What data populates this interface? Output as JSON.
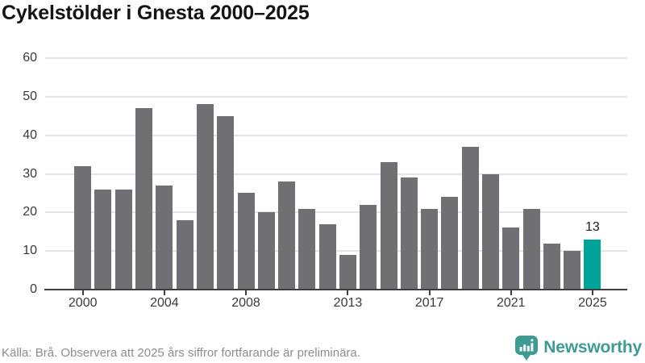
{
  "chart": {
    "title": "Cykelstölder i Gnesta 2000–2025"
  },
  "chart_data": {
    "type": "bar",
    "title": "Cykelstölder i Gnesta 2000–2025",
    "categories": [
      2000,
      2001,
      2002,
      2003,
      2004,
      2005,
      2006,
      2007,
      2008,
      2009,
      2010,
      2011,
      2012,
      2013,
      2014,
      2015,
      2016,
      2017,
      2018,
      2019,
      2020,
      2021,
      2022,
      2023,
      2024,
      2025
    ],
    "values": [
      32,
      26,
      26,
      47,
      27,
      18,
      48,
      45,
      25,
      20,
      28,
      21,
      17,
      9,
      22,
      33,
      29,
      21,
      24,
      37,
      30,
      16,
      21,
      12,
      10,
      13
    ],
    "xlabel": "",
    "ylabel": "",
    "ylim": [
      0,
      60
    ],
    "y_ticks": [
      0,
      10,
      20,
      30,
      40,
      50,
      60
    ],
    "x_tick_years": [
      2000,
      2004,
      2008,
      2013,
      2017,
      2021,
      2025
    ],
    "grid": "horizontal",
    "legend": "none",
    "bar_color": "#6f6f74",
    "highlight_color": "#00a39a",
    "highlight_year": 2025,
    "annotation": {
      "year": 2025,
      "text": "13"
    }
  },
  "footer": {
    "source": "Källa: Brå. Observera att 2025 års siffror fortfarande är preliminära.",
    "brand": "Newsworthy"
  },
  "colors": {
    "gridline": "#e4e4e4",
    "axis": "#3f3f3f",
    "title": "#141414",
    "axis_labels": "#3a3a3a",
    "source_text": "#8a8d8f",
    "brand_teal": "#3e9b94"
  }
}
